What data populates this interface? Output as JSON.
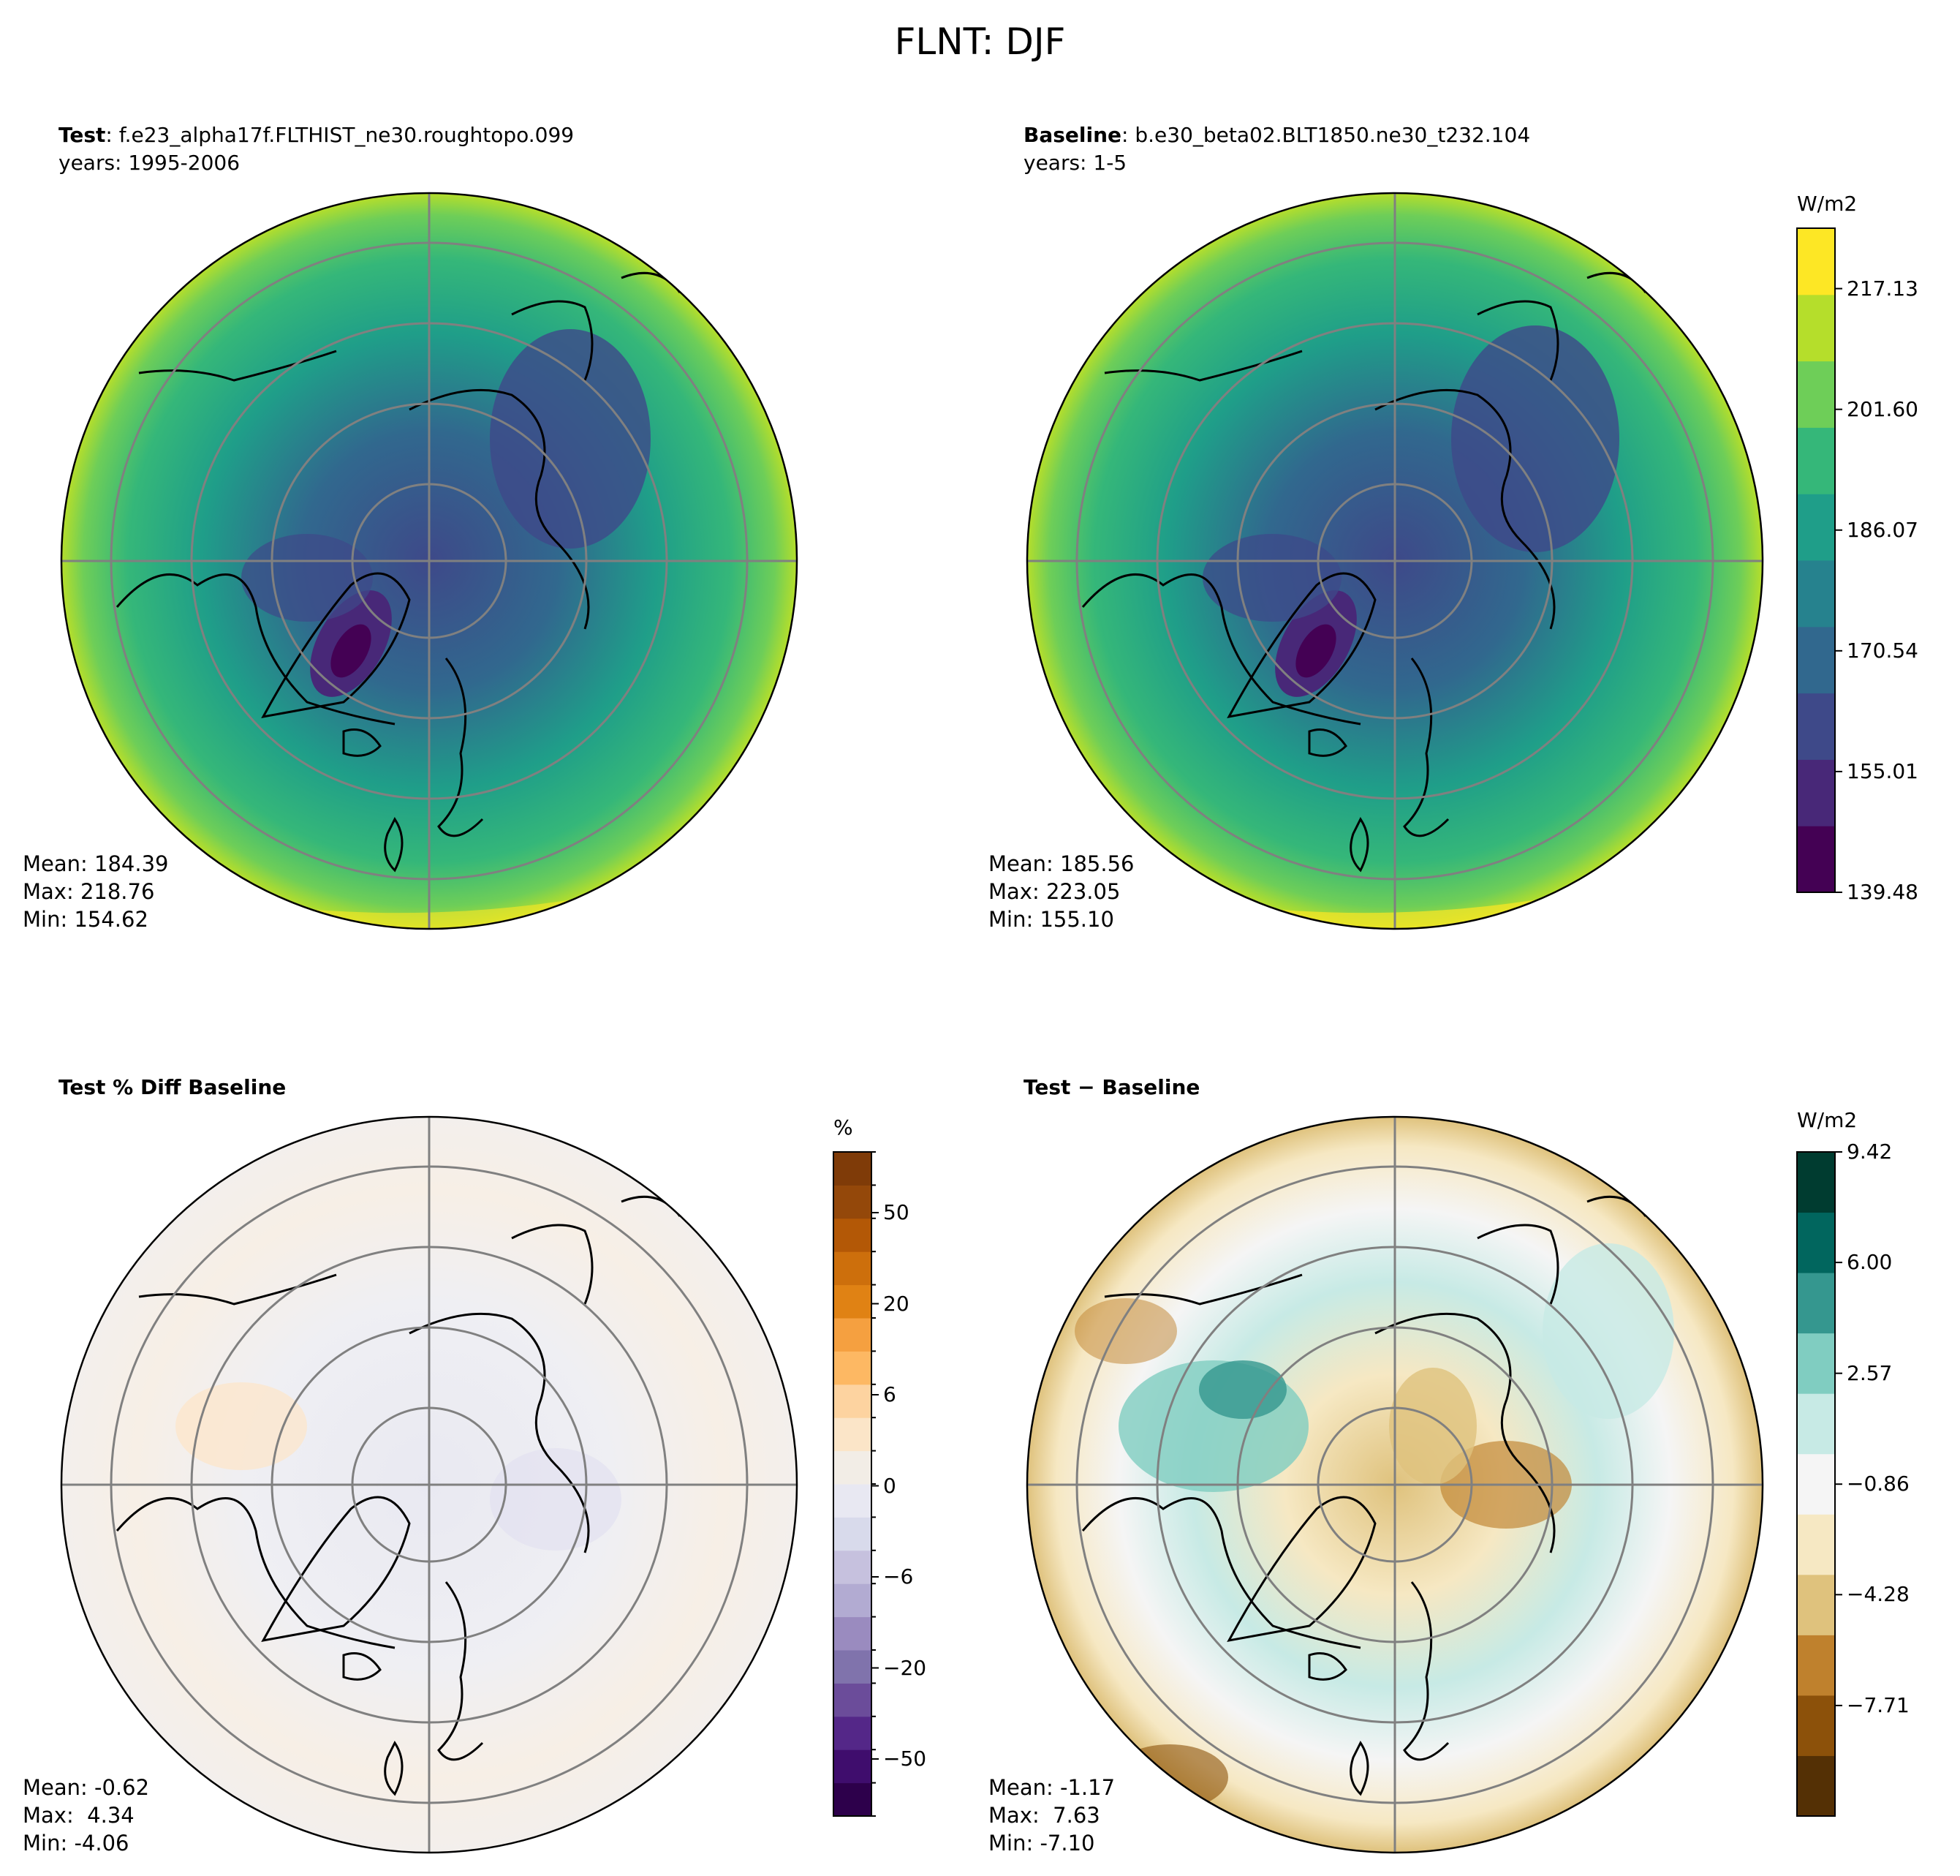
{
  "figure_title": "FLNT: DJF",
  "chart_data": [
    {
      "type": "heatmap",
      "projection": "north-polar-stereographic",
      "panel": "test",
      "title_bold": "Test",
      "title_rest": ": f.e23_alpha17f.FLTHIST_ne30.roughtopo.099",
      "subtitle": "years: 1995-2006",
      "stats": {
        "mean": "Mean: 184.39",
        "max": "Max: 218.76",
        "min": "Min: 154.62"
      },
      "colormap": "viridis",
      "levels_range": [
        139.48,
        225.0
      ]
    },
    {
      "type": "heatmap",
      "projection": "north-polar-stereographic",
      "panel": "baseline",
      "title_bold": "Baseline",
      "title_rest": ": b.e30_beta02.BLT1850.ne30_t232.104",
      "subtitle": "years: 1-5",
      "stats": {
        "mean": "Mean: 185.56",
        "max": "Max: 223.05",
        "min": "Min: 155.10"
      },
      "colormap": "viridis",
      "colorbar": {
        "unit": "W/m2",
        "ticks": [
          "217.13",
          "201.60",
          "186.07",
          "170.54",
          "155.01",
          "139.48"
        ],
        "tick_values": [
          217.13,
          201.6,
          186.07,
          170.54,
          155.01,
          139.48
        ],
        "range": [
          139.48,
          224.9
        ],
        "colors": [
          "#440154",
          "#482878",
          "#3e4989",
          "#31688e",
          "#26828e",
          "#1f9e89",
          "#35b779",
          "#6ece58",
          "#b5de2b",
          "#fde725"
        ]
      }
    },
    {
      "type": "heatmap",
      "projection": "north-polar-stereographic",
      "panel": "pct_diff",
      "title_bold": "Test % Diff Baseline",
      "stats": {
        "mean": "Mean: -0.62",
        "max": "Max:  4.34",
        "min": "Min: -4.06"
      },
      "colormap": "PuOr_r",
      "colorbar": {
        "unit": "%",
        "ticks": [
          "50",
          "20",
          "6",
          "0",
          "−6",
          "−20",
          "−50"
        ],
        "tick_values": [
          50,
          20,
          6,
          0,
          -6,
          -20,
          -50
        ]
      }
    },
    {
      "type": "heatmap",
      "projection": "north-polar-stereographic",
      "panel": "diff",
      "title_bold": "Test − Baseline",
      "stats": {
        "mean": "Mean: -1.17",
        "max": "Max:  7.63",
        "min": "Min: -7.10"
      },
      "colormap": "BrBG",
      "colorbar": {
        "unit": "W/m2",
        "ticks": [
          "9.42",
          "6.00",
          "2.57",
          "−0.86",
          "−4.28",
          "−7.71"
        ],
        "tick_values": [
          9.42,
          6.0,
          2.57,
          -0.86,
          -4.28,
          -7.71
        ],
        "colors": [
          "#543005",
          "#8c510a",
          "#bf812d",
          "#dfc27d",
          "#f6e8c3",
          "#f5f5f5",
          "#c7eae5",
          "#80cdc1",
          "#35978f",
          "#01665e",
          "#003c30"
        ]
      }
    }
  ],
  "colors": {
    "viridis_low": "#440154",
    "viridis_high": "#fde725",
    "grid": "#808080",
    "coast": "#000000"
  }
}
